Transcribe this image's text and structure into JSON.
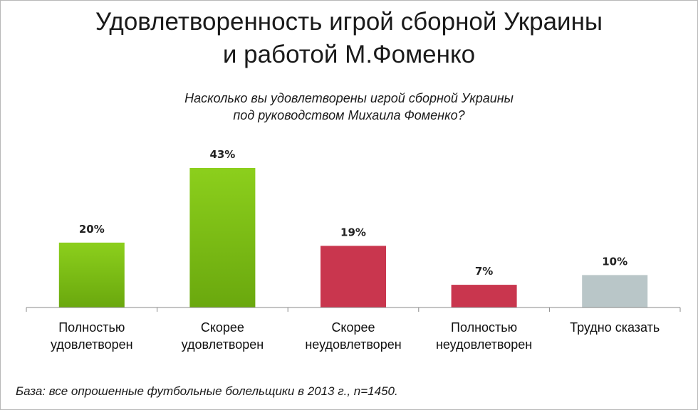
{
  "header": {
    "title_line1": "Удовлетворенность игрой сборной Украины",
    "title_line2": "и работой М.Фоменко",
    "question_line1": "Насколько вы удовлетворены игрой сборной Украины",
    "question_line2": "под руководством Михаила Фоменко?"
  },
  "footer": {
    "base_note": "База: все опрошенные футбольные болельщики в 2013 г., n=1450."
  },
  "colors": {
    "green": "#8ccf1c",
    "green_dark": "#6aa80e",
    "red": "#c9364e",
    "gray": "#b9c6c8",
    "axis": "#888888"
  },
  "chart_data": {
    "type": "bar",
    "categories": [
      [
        "Полностью",
        "удовлетворен"
      ],
      [
        "Скорее",
        "удовлетворен"
      ],
      [
        "Скорее",
        "неудовлетворен"
      ],
      [
        "Полностью",
        "неудовлетворен"
      ],
      [
        "Трудно сказать"
      ]
    ],
    "values": [
      20,
      43,
      19,
      7,
      10
    ],
    "value_labels": [
      "20%",
      "43%",
      "19%",
      "7%",
      "10%"
    ],
    "bar_colors": [
      "green",
      "green",
      "red",
      "red",
      "gray"
    ],
    "unit": "%",
    "ylim": [
      0,
      50
    ],
    "grid": false,
    "legend": "none"
  }
}
